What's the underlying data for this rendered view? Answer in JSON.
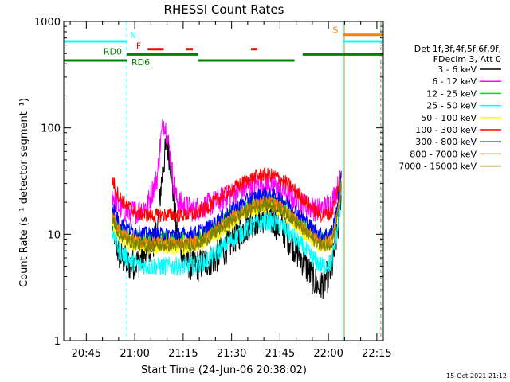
{
  "chart_data": {
    "type": "line",
    "title": "RHESSI Count Rates",
    "xlabel": "Start Time (24-Jun-06 20:38:02)",
    "ylabel": "Count Rate (s⁻¹ detector segment⁻¹)",
    "yscale": "log",
    "ylim": [
      1,
      1000
    ],
    "y_tick_labels": [
      "1",
      "10",
      "100",
      "1000"
    ],
    "xlim_minutes": [
      38.0,
      137.0
    ],
    "x_tick_labels": [
      "20:45",
      "21:00",
      "21:15",
      "21:30",
      "21:45",
      "22:00",
      "22:15"
    ],
    "footer": "15-Oct-2021 21:12",
    "legend": {
      "header_line1": "Det 1f,3f,4f,5f,6f,9f,",
      "header_line2": "FDecim 3, Att 0",
      "position": "right-outside"
    },
    "series": [
      {
        "name": "3 - 6 keV",
        "color": "#000000",
        "x": [
          53,
          55,
          58,
          61,
          64,
          67,
          68,
          69,
          70,
          71,
          72,
          73,
          75,
          78,
          80,
          82,
          85,
          88,
          91,
          94,
          97,
          100,
          103,
          106,
          109,
          112,
          115,
          117,
          119,
          121,
          123,
          124
        ],
        "y": [
          13,
          6.5,
          5.2,
          5.4,
          6.8,
          10.5,
          26,
          48,
          72,
          50,
          22,
          10.5,
          6.2,
          5.0,
          5.1,
          5.5,
          6.0,
          7.3,
          9.3,
          11.5,
          13.6,
          14.5,
          13.4,
          11.0,
          8.0,
          5.7,
          3.9,
          3.2,
          3.7,
          4.6,
          12,
          28
        ]
      },
      {
        "name": "6 - 12 keV",
        "color": "#ff00ff",
        "x": [
          53,
          55,
          58,
          61,
          64,
          67,
          68,
          69,
          70,
          71,
          72,
          73,
          75,
          78,
          80,
          82,
          85,
          88,
          91,
          94,
          97,
          100,
          103,
          106,
          109,
          112,
          115,
          117,
          119,
          121,
          123,
          124
        ],
        "y": [
          24,
          18,
          16,
          16.5,
          19,
          35,
          75,
          118,
          88,
          55,
          30,
          21,
          18.5,
          17,
          17.5,
          18.5,
          20,
          22,
          24.5,
          27,
          29,
          30,
          28.5,
          25.5,
          22,
          19,
          17.5,
          17,
          18,
          20,
          28,
          36
        ]
      },
      {
        "name": "12 - 25 keV",
        "color": "#00e000",
        "x": [
          53,
          55,
          58,
          61,
          64,
          67,
          70,
          73,
          76,
          79,
          82,
          85,
          88,
          91,
          94,
          97,
          100,
          103,
          106,
          109,
          112,
          115,
          118,
          121,
          123,
          124
        ],
        "y": [
          15,
          11,
          9.5,
          9.2,
          9.0,
          9.0,
          9.0,
          9.0,
          9.0,
          9.2,
          10,
          11.5,
          13.5,
          15.5,
          17.5,
          19.5,
          21,
          20.5,
          18.5,
          15.5,
          12.5,
          10.2,
          9.0,
          9.5,
          20,
          42
        ]
      },
      {
        "name": "25 - 50 keV",
        "color": "#00ffff",
        "x": [
          53,
          55,
          58,
          61,
          64,
          67,
          70,
          73,
          76,
          79,
          82,
          85,
          88,
          91,
          94,
          97,
          100,
          103,
          106,
          109,
          112,
          115,
          118,
          121,
          123,
          124
        ],
        "y": [
          11,
          7.2,
          5.8,
          5.2,
          5.0,
          5.0,
          5.0,
          5.0,
          5.0,
          5.1,
          5.6,
          6.5,
          7.8,
          9.3,
          10.8,
          12.3,
          13.3,
          12.9,
          11.6,
          9.6,
          7.6,
          6.0,
          5.0,
          5.4,
          12,
          24
        ]
      },
      {
        "name": "50 - 100 keV",
        "color": "#ffff00",
        "x": [
          53,
          55,
          58,
          61,
          64,
          67,
          70,
          73,
          76,
          79,
          82,
          85,
          88,
          91,
          94,
          97,
          100,
          103,
          106,
          109,
          112,
          115,
          118,
          121,
          123,
          124
        ],
        "y": [
          13,
          9.2,
          8.0,
          7.6,
          7.4,
          7.4,
          7.4,
          7.4,
          7.4,
          7.6,
          8.3,
          9.6,
          11.3,
          13.2,
          15.0,
          16.7,
          17.8,
          17.3,
          15.6,
          13.1,
          10.6,
          8.6,
          7.4,
          7.9,
          16,
          30
        ]
      },
      {
        "name": "100 - 300 keV",
        "color": "#ff0000",
        "x": [
          53,
          55,
          58,
          61,
          64,
          67,
          70,
          73,
          76,
          79,
          82,
          85,
          88,
          91,
          94,
          97,
          100,
          103,
          106,
          109,
          112,
          115,
          118,
          121,
          123,
          124
        ],
        "y": [
          33,
          23,
          18,
          15.8,
          15.0,
          15.0,
          15.2,
          15.2,
          15.2,
          15.7,
          17.5,
          20.5,
          24,
          27.5,
          31,
          34.5,
          36.5,
          35.5,
          32,
          27,
          22,
          17.5,
          15.0,
          15.8,
          27,
          38
        ]
      },
      {
        "name": "300 - 800 keV",
        "color": "#0000ff",
        "x": [
          53,
          55,
          58,
          61,
          64,
          67,
          70,
          73,
          76,
          79,
          82,
          85,
          88,
          91,
          94,
          97,
          100,
          103,
          106,
          109,
          112,
          115,
          118,
          121,
          123,
          124
        ],
        "y": [
          19,
          13.2,
          11.2,
          10.4,
          10.0,
          10.0,
          10.0,
          10.0,
          10.0,
          10.3,
          11.3,
          13.0,
          15.3,
          17.8,
          20.2,
          22.5,
          24.0,
          23.3,
          21.0,
          17.6,
          14.2,
          11.4,
          9.8,
          10.3,
          20,
          34
        ]
      },
      {
        "name": "800 - 7000 keV",
        "color": "#ff8000",
        "x": [
          53,
          55,
          58,
          61,
          64,
          67,
          70,
          73,
          76,
          79,
          82,
          85,
          88,
          91,
          94,
          97,
          100,
          103,
          106,
          109,
          112,
          115,
          118,
          121,
          123,
          124
        ],
        "y": [
          16,
          11.2,
          9.3,
          8.6,
          8.3,
          8.3,
          8.3,
          8.3,
          8.3,
          8.6,
          9.4,
          10.9,
          12.8,
          14.9,
          17.0,
          18.9,
          20.1,
          19.5,
          17.6,
          14.8,
          11.9,
          9.6,
          8.2,
          8.7,
          17,
          31
        ]
      },
      {
        "name": "7000 - 15000 keV",
        "color": "#808000",
        "x": [
          53,
          55,
          58,
          61,
          64,
          67,
          70,
          73,
          76,
          79,
          82,
          85,
          88,
          91,
          94,
          97,
          100,
          103,
          106,
          109,
          112,
          115,
          118,
          121,
          123,
          124
        ],
        "y": [
          14,
          10.2,
          8.6,
          8.0,
          7.8,
          7.8,
          7.8,
          7.8,
          7.8,
          8.0,
          8.8,
          10.2,
          12.0,
          14.0,
          16.0,
          17.8,
          19.0,
          18.4,
          16.6,
          13.9,
          11.2,
          9.0,
          7.7,
          8.2,
          16,
          30
        ]
      }
    ],
    "flag_bars": [
      {
        "label": "N",
        "color": "#00ffff",
        "segments": [
          [
            38.0,
            57.5
          ]
        ],
        "value": 650,
        "label_at": 57.5
      },
      {
        "label": "",
        "color": "#00ffff",
        "segments": [
          [
            124.5,
            137.0
          ]
        ],
        "value": 650
      },
      {
        "label": "S",
        "color": "#ff8000",
        "segments": [
          [
            124.5,
            137.0
          ]
        ],
        "value": 750,
        "label_at": 124.0
      },
      {
        "label": "F",
        "color": "#ff0000",
        "segments": [
          [
            64,
            69
          ],
          [
            76,
            78
          ],
          [
            96,
            98
          ]
        ],
        "value": 550,
        "label_at": 63.0
      },
      {
        "label": "RD0",
        "color": "#008000",
        "segments": [
          [
            57.5,
            79.5
          ],
          [
            112.0,
            137.0
          ]
        ],
        "value": 490,
        "label_at": 57.0
      },
      {
        "label": "RD6",
        "color": "#008000",
        "segments": [
          [
            38.0,
            57.5
          ],
          [
            79.5,
            109.5
          ]
        ],
        "value": 430,
        "label_at": 58.0
      }
    ],
    "vertical_markers": [
      {
        "x": 38.0,
        "color": "#00ffff",
        "style": "solid"
      },
      {
        "x": 57.5,
        "color": "#00ffff",
        "style": "dashed"
      },
      {
        "x": 124.5,
        "color": "#00ffff",
        "style": "solid"
      },
      {
        "x": 124.9,
        "color": "#ff8000",
        "style": "solid"
      },
      {
        "x": 136.2,
        "color": "#ff8000",
        "style": "dashed"
      },
      {
        "x": 136.6,
        "color": "#00ffff",
        "style": "dashed"
      }
    ]
  }
}
